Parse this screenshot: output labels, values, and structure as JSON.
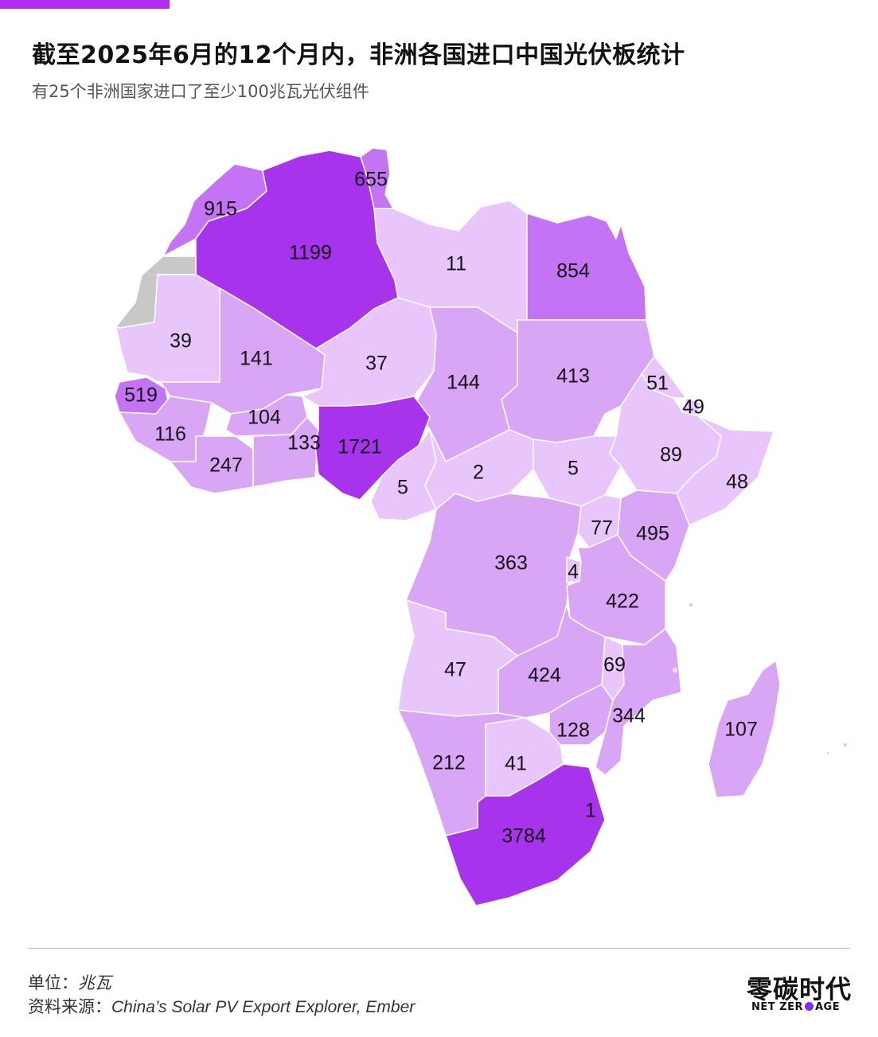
{
  "title": "截至2025年6月的12个月内，非洲各国进口中国光伏板统计",
  "subtitle": "有25个非洲国家进口了至少100兆瓦光伏组件",
  "footer": {
    "unit_label": "单位：",
    "unit_value": "兆瓦",
    "source_label": "资料来源：",
    "source_value": "China’s Solar PV Export Explorer, Ember"
  },
  "brand": {
    "name_cn": "零碳时代",
    "name_en_left": "NET ZER",
    "name_en_right": "AGE",
    "dot_color": "#7b2ff7"
  },
  "colors": {
    "accent": "#b02cf0",
    "divider": "#d9a6ee",
    "scale": {
      "lowest": "#e8c6fb",
      "low": "#d9a6f5",
      "mid": "#c373f3",
      "high": "#a833ec",
      "no_data": "#c8c8c8"
    }
  },
  "map_data": {
    "regions": [
      {
        "name": "Morocco",
        "value": 915,
        "level": "mid"
      },
      {
        "name": "Algeria",
        "value": 1199,
        "level": "high"
      },
      {
        "name": "Tunisia",
        "value": 655,
        "level": "mid"
      },
      {
        "name": "Libya",
        "value": 11,
        "level": "lowest"
      },
      {
        "name": "Egypt",
        "value": 854,
        "level": "mid"
      },
      {
        "name": "Western Sahara",
        "value": null,
        "level": "no_data"
      },
      {
        "name": "Mauritania",
        "value": 39,
        "level": "lowest"
      },
      {
        "name": "Mali",
        "value": 141,
        "level": "low"
      },
      {
        "name": "Niger",
        "value": 37,
        "level": "lowest"
      },
      {
        "name": "Chad",
        "value": 144,
        "level": "low"
      },
      {
        "name": "Sudan",
        "value": 413,
        "level": "low"
      },
      {
        "name": "Eritrea",
        "value": 51,
        "level": "lowest"
      },
      {
        "name": "Djibouti",
        "value": 49,
        "level": "lowest"
      },
      {
        "name": "Ethiopia",
        "value": 89,
        "level": "lowest"
      },
      {
        "name": "Somalia",
        "value": 48,
        "level": "lowest"
      },
      {
        "name": "Senegal",
        "value": 519,
        "level": "mid"
      },
      {
        "name": "Guinea",
        "value": 116,
        "level": "low"
      },
      {
        "name": "Burkina Faso",
        "value": 104,
        "level": "low"
      },
      {
        "name": "Côte d'Ivoire",
        "value": 247,
        "level": "low"
      },
      {
        "name": "Ghana",
        "value": 133,
        "level": "low"
      },
      {
        "name": "Nigeria",
        "value": 1721,
        "level": "high"
      },
      {
        "name": "Cameroon",
        "value": 5,
        "level": "lowest"
      },
      {
        "name": "Central African Republic",
        "value": 2,
        "level": "lowest"
      },
      {
        "name": "South Sudan",
        "value": 5,
        "level": "lowest"
      },
      {
        "name": "Uganda",
        "value": 77,
        "level": "lowest"
      },
      {
        "name": "Kenya",
        "value": 495,
        "level": "low"
      },
      {
        "name": "DR Congo",
        "value": 363,
        "level": "low"
      },
      {
        "name": "Burundi",
        "value": 4,
        "level": "lowest"
      },
      {
        "name": "Tanzania",
        "value": 422,
        "level": "low"
      },
      {
        "name": "Angola",
        "value": 47,
        "level": "lowest"
      },
      {
        "name": "Zambia",
        "value": 424,
        "level": "low"
      },
      {
        "name": "Malawi",
        "value": 69,
        "level": "lowest"
      },
      {
        "name": "Mozambique",
        "value": 344,
        "level": "low"
      },
      {
        "name": "Zimbabwe",
        "value": 128,
        "level": "low"
      },
      {
        "name": "Madagascar",
        "value": 107,
        "level": "low"
      },
      {
        "name": "Namibia",
        "value": 212,
        "level": "low"
      },
      {
        "name": "Botswana",
        "value": 41,
        "level": "lowest"
      },
      {
        "name": "Eswatini",
        "value": 1,
        "level": "lowest"
      },
      {
        "name": "South Africa",
        "value": 3784,
        "level": "high"
      }
    ]
  }
}
